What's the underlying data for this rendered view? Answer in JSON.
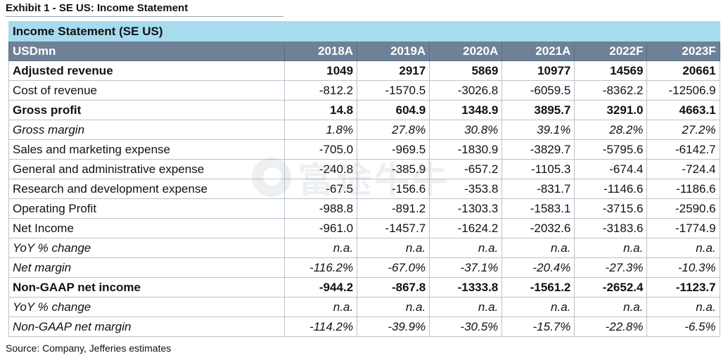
{
  "exhibit_title": "Exhibit 1 - SE US: Income Statement",
  "table": {
    "title": "Income Statement (SE US)",
    "header": {
      "label": "USDmn",
      "years": [
        "2018A",
        "2019A",
        "2020A",
        "2021A",
        "2022F",
        "2023F"
      ]
    },
    "rows": [
      {
        "label": "Adjusted revenue",
        "style": "bold",
        "values": [
          "1049",
          "2917",
          "5869",
          "10977",
          "14569",
          "20661"
        ]
      },
      {
        "label": "Cost of revenue",
        "style": "normal",
        "values": [
          "-812.2",
          "-1570.5",
          "-3026.8",
          "-6059.5",
          "-8362.2",
          "-12506.9"
        ]
      },
      {
        "label": "Gross profit",
        "style": "bold",
        "values": [
          "14.8",
          "604.9",
          "1348.9",
          "3895.7",
          "3291.0",
          "4663.1"
        ]
      },
      {
        "label": "Gross margin",
        "style": "italic",
        "values": [
          "1.8%",
          "27.8%",
          "30.8%",
          "39.1%",
          "28.2%",
          "27.2%"
        ]
      },
      {
        "label": "Sales and marketing expense",
        "style": "normal",
        "values": [
          "-705.0",
          "-969.5",
          "-1830.9",
          "-3829.7",
          "-5795.6",
          "-6142.7"
        ]
      },
      {
        "label": "General and administrative expense",
        "style": "normal",
        "values": [
          "-240.8",
          "-385.9",
          "-657.2",
          "-1105.3",
          "-674.4",
          "-724.4"
        ]
      },
      {
        "label": "Research and development expense",
        "style": "normal",
        "values": [
          "-67.5",
          "-156.6",
          "-353.8",
          "-831.7",
          "-1146.6",
          "-1186.6"
        ]
      },
      {
        "label": "Operating Profit",
        "style": "normal",
        "values": [
          "-988.8",
          "-891.2",
          "-1303.3",
          "-1583.1",
          "-3715.6",
          "-2590.6"
        ]
      },
      {
        "label": "Net Income",
        "style": "normal",
        "values": [
          "-961.0",
          "-1457.7",
          "-1624.2",
          "-2032.6",
          "-3183.6",
          "-1774.9"
        ]
      },
      {
        "label": "YoY % change",
        "style": "italic",
        "values": [
          "n.a.",
          "n.a.",
          "n.a.",
          "n.a.",
          "n.a.",
          "n.a."
        ]
      },
      {
        "label": "Net margin",
        "style": "italic",
        "values": [
          "-116.2%",
          "-67.0%",
          "-37.1%",
          "-20.4%",
          "-27.3%",
          "-10.3%"
        ]
      },
      {
        "label": "Non-GAAP net income",
        "style": "bold",
        "values": [
          "-944.2",
          "-867.8",
          "-1333.8",
          "-1561.2",
          "-2652.4",
          "-1123.7"
        ]
      },
      {
        "label": "YoY % change",
        "style": "italic",
        "values": [
          "n.a.",
          "n.a.",
          "n.a.",
          "n.a.",
          "n.a.",
          "n.a."
        ]
      },
      {
        "label": "Non-GAAP net margin",
        "style": "italic",
        "values": [
          "-114.2%",
          "-39.9%",
          "-30.5%",
          "-15.7%",
          "-22.8%",
          "-6.5%"
        ]
      }
    ]
  },
  "source": "Source: Company, Jefferies estimates",
  "watermark": {
    "text": "富途牛牛",
    "icon": "futu-logo-icon"
  }
}
